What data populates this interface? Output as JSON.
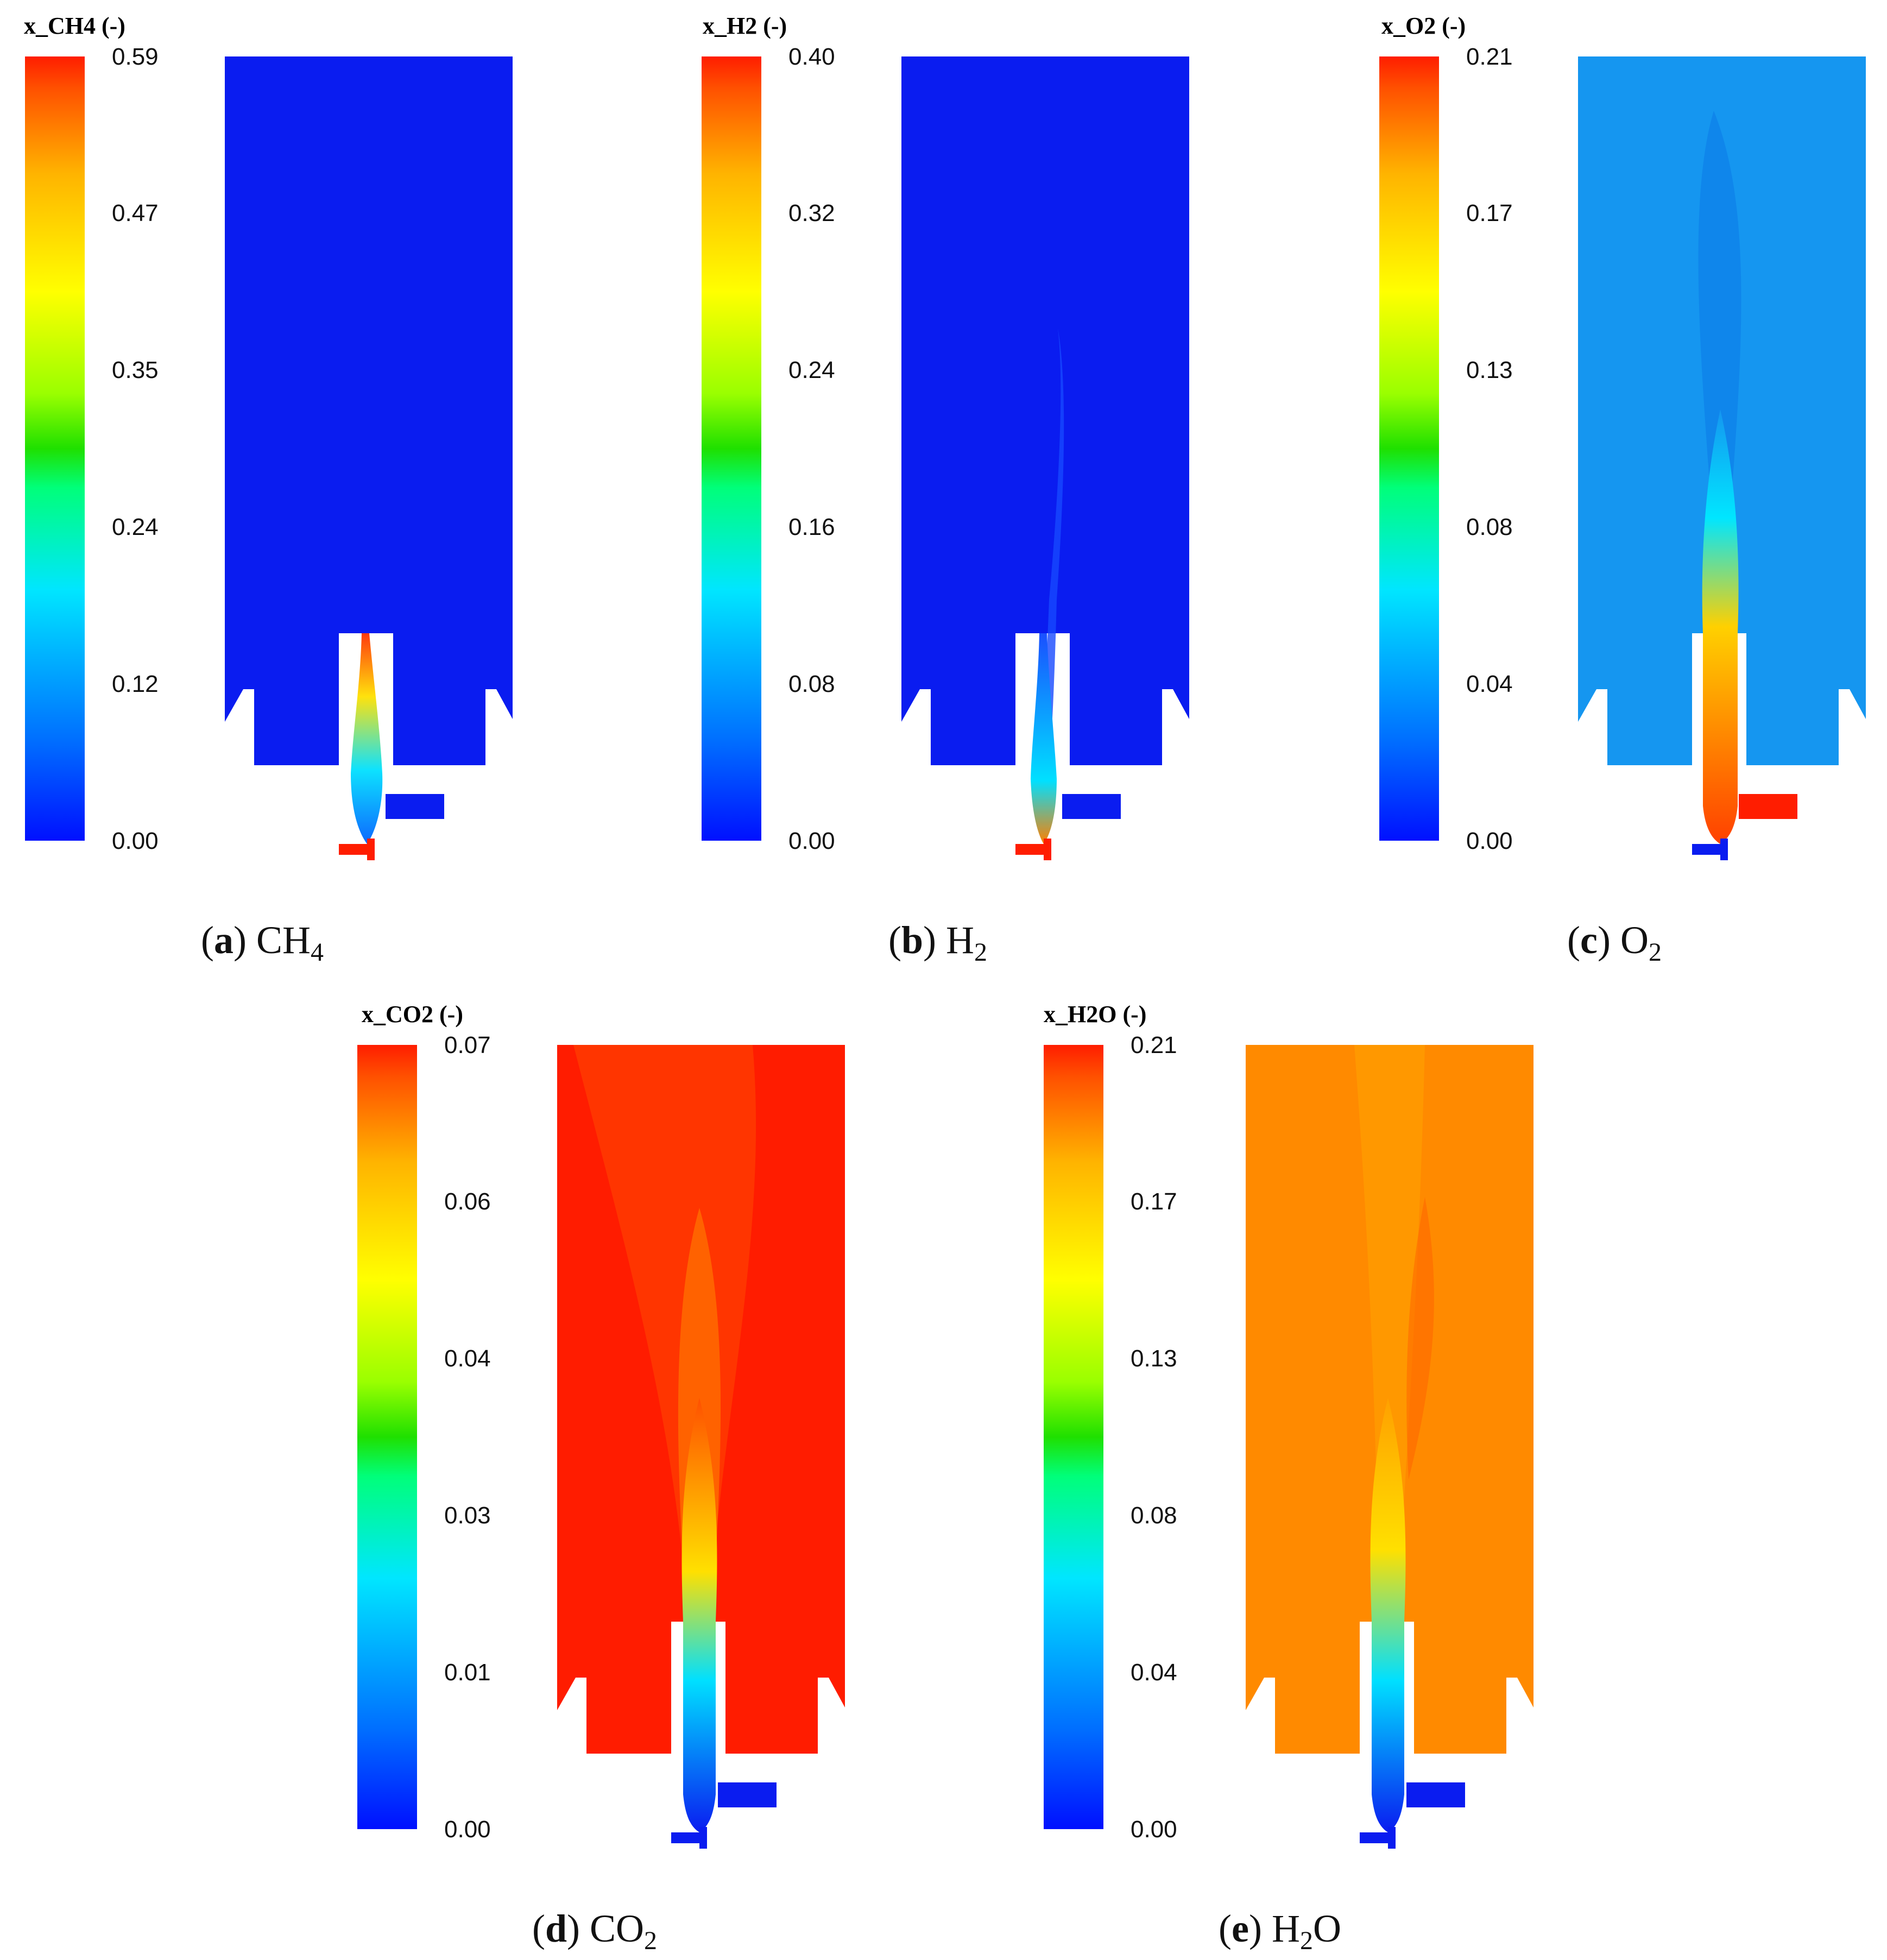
{
  "panels": [
    {
      "id": "a",
      "legend_title": "x_CH4 (-)",
      "ticks": [
        "0.59",
        "0.47",
        "0.35",
        "0.24",
        "0.12",
        "0.00"
      ],
      "caption_letter": "a",
      "caption_species": "CH",
      "caption_sub": "4",
      "field_color": "#0a1cf0"
    },
    {
      "id": "b",
      "legend_title": "x_H2 (-)",
      "ticks": [
        "0.40",
        "0.32",
        "0.24",
        "0.16",
        "0.08",
        "0.00"
      ],
      "caption_letter": "b",
      "caption_species": "H",
      "caption_sub": "2",
      "field_color": "#0a1cf0"
    },
    {
      "id": "c",
      "legend_title": "x_O2 (-)",
      "ticks": [
        "0.21",
        "0.17",
        "0.13",
        "0.08",
        "0.04",
        "0.00"
      ],
      "caption_letter": "c",
      "caption_species": "O",
      "caption_sub": "2",
      "field_color": "#1596f0"
    },
    {
      "id": "d",
      "legend_title": "x_CO2 (-)",
      "ticks": [
        "0.07",
        "0.06",
        "0.04",
        "0.03",
        "0.01",
        "0.00"
      ],
      "caption_letter": "d",
      "caption_species": "CO",
      "caption_sub": "2",
      "field_color": "#ff1c00"
    },
    {
      "id": "e",
      "legend_title": "x_H2O (-)",
      "ticks": [
        "0.21",
        "0.17",
        "0.13",
        "0.08",
        "0.04",
        "0.00"
      ],
      "caption_letter": "e",
      "caption_species": "H",
      "caption_sub": "2",
      "caption_suffix": "O",
      "field_color": "#ff8a00"
    }
  ]
}
